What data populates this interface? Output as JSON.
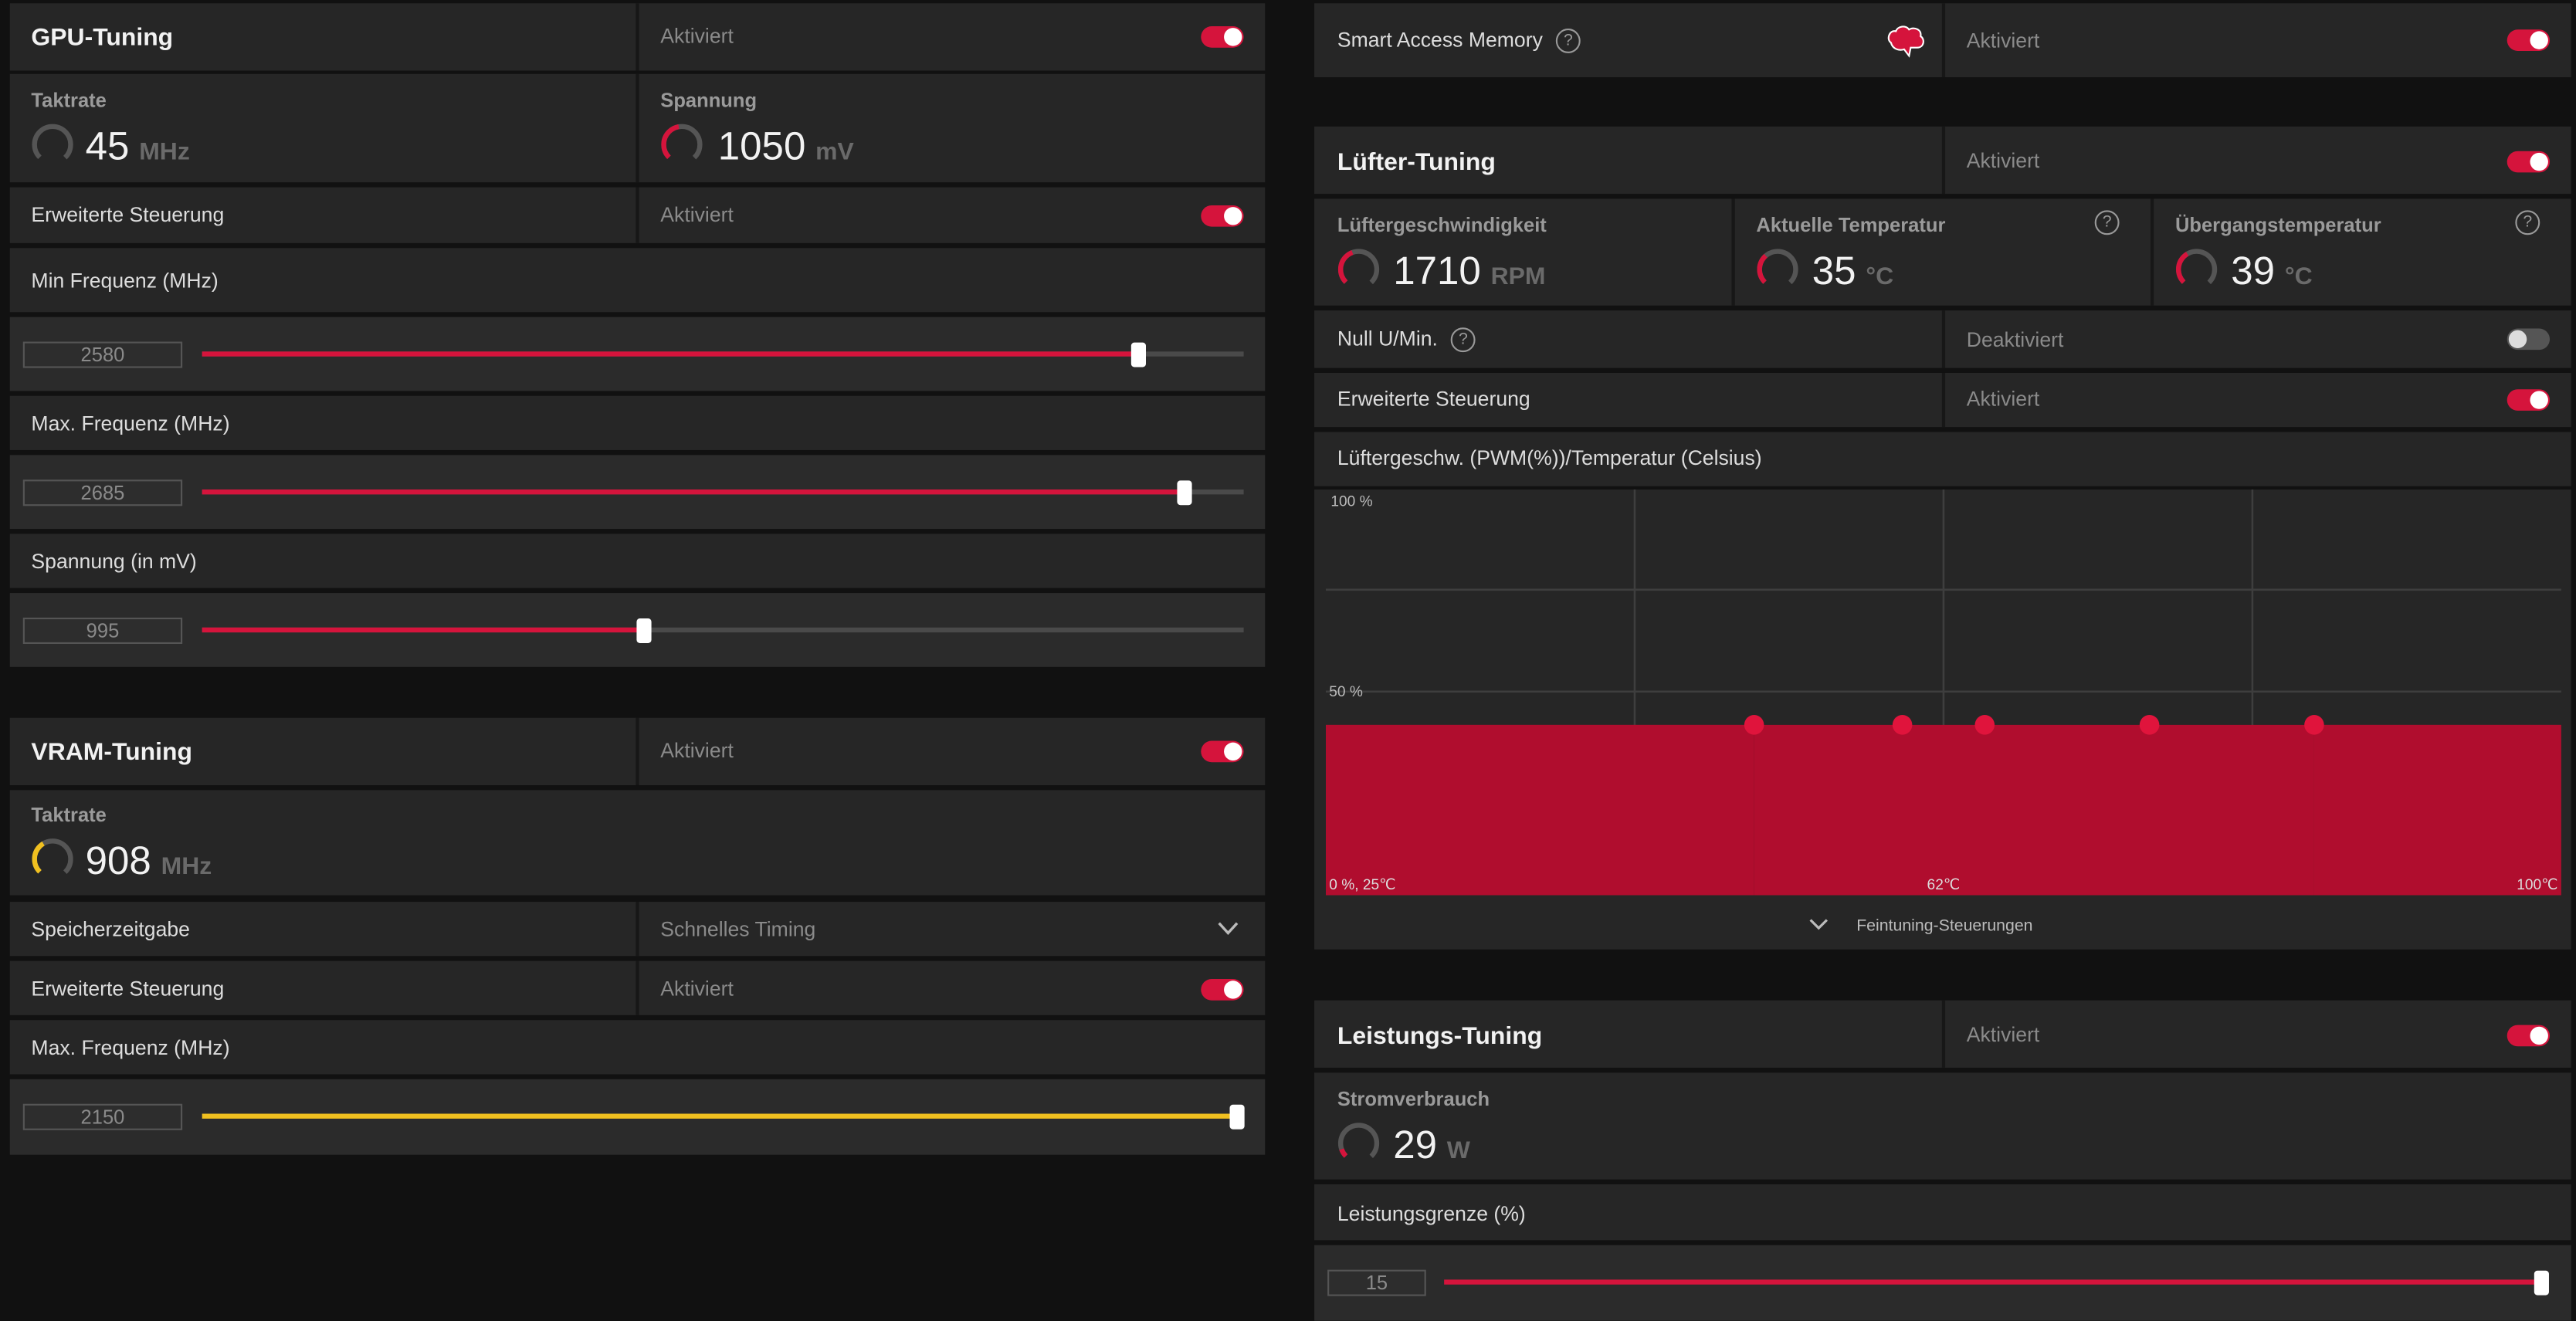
{
  "gpu_tuning": {
    "title": "GPU-Tuning",
    "status": "Aktiviert",
    "clock": {
      "label": "Taktrate",
      "value": 45,
      "unit": "MHz"
    },
    "voltage": {
      "label": "Spannung",
      "value": 1050,
      "unit": "mV"
    },
    "advanced": {
      "label": "Erweiterte Steuerung",
      "status": "Aktiviert"
    },
    "sliders": [
      {
        "label": "Min Frequenz (MHz)",
        "value": 2580
      },
      {
        "label": "Max. Frequenz (MHz)",
        "value": 2685
      },
      {
        "label": "Spannung (in mV)",
        "value": 995
      }
    ]
  },
  "vram_tuning": {
    "title": "VRAM-Tuning",
    "status": "Aktiviert",
    "clock": {
      "label": "Taktrate",
      "value": 908,
      "unit": "MHz"
    },
    "memory_timing": {
      "label": "Speicherzeitgabe",
      "value": "Schnelles Timing"
    },
    "advanced": {
      "label": "Erweiterte Steuerung",
      "status": "Aktiviert"
    },
    "slider": {
      "label": "Max. Frequenz (MHz)",
      "value": 2150
    }
  },
  "smart_access_memory": {
    "label": "Smart Access Memory",
    "status": "Aktiviert"
  },
  "fan_tuning": {
    "title": "Lüfter-Tuning",
    "status": "Aktiviert",
    "fan_speed": {
      "label": "Lüftergeschwindigkeit",
      "value": 1710,
      "unit": "RPM"
    },
    "current_temp": {
      "label": "Aktuelle Temperatur",
      "value": 35,
      "unit": "°C"
    },
    "junction_temp": {
      "label": "Übergangstemperatur",
      "value": 39,
      "unit": "°C"
    },
    "zero_rpm": {
      "label": "Null U/Min.",
      "status": "Deaktiviert"
    },
    "advanced": {
      "label": "Erweiterte Steuerung",
      "status": "Aktiviert"
    },
    "curve": {
      "title": "Lüftergeschw. (PWM(%))/Temperatur (Celsius)",
      "label_top": "100 %",
      "label_mid": "50 %",
      "label_origin": "0 %, 25℃",
      "label_center": "62℃",
      "label_right": "100℃",
      "xlim": [
        25,
        100
      ],
      "ylim": [
        0,
        100
      ],
      "temp": [
        51,
        60,
        65,
        75,
        85
      ],
      "pwm": [
        42,
        42,
        42,
        42,
        42
      ]
    },
    "fine_tuning": "Feintuning-Steuerungen"
  },
  "power_tuning": {
    "title": "Leistungs-Tuning",
    "status": "Aktiviert",
    "power": {
      "label": "Stromverbrauch",
      "value": 29,
      "unit": "W"
    },
    "slider": {
      "label": "Leistungsgrenze (%)",
      "value": 15
    }
  }
}
